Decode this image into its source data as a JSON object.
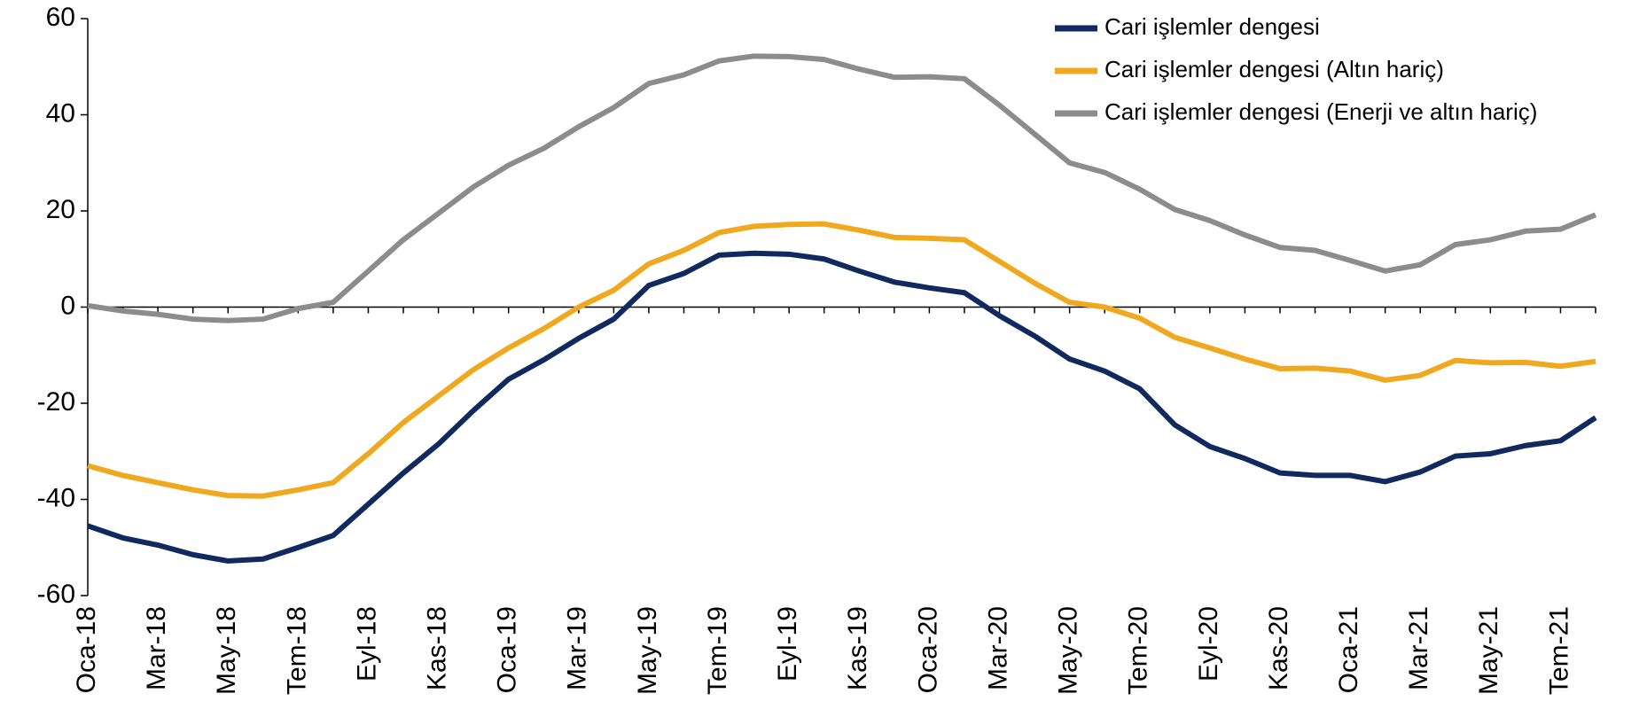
{
  "chart_data": {
    "type": "line",
    "categories": [
      "Oca-18",
      null,
      "Mar-18",
      null,
      "May-18",
      null,
      "Tem-18",
      null,
      "Eyl-18",
      null,
      "Kas-18",
      null,
      "Oca-19",
      null,
      "Mar-19",
      null,
      "May-19",
      null,
      "Tem-19",
      null,
      "Eyl-19",
      null,
      "Kas-19",
      null,
      "Oca-20",
      null,
      "Mar-20",
      null,
      "May-20",
      null,
      "Tem-20",
      null,
      "Eyl-20",
      null,
      "Kas-20",
      null,
      "Oca-21",
      null,
      "Mar-21",
      null,
      "May-21",
      null,
      "Tem-21",
      null
    ],
    "series": [
      {
        "name": "Cari işlemler dengesi",
        "color": "#10295e",
        "values": [
          -45.5,
          -48,
          -49.5,
          -51.5,
          -52.8,
          -52.4,
          -50,
          -47.5,
          -41,
          -34.5,
          -28.5,
          -21.5,
          -15,
          -11,
          -6.5,
          -2.5,
          4.5,
          7,
          10.8,
          11.2,
          11,
          10,
          7.5,
          5.2,
          4,
          3,
          -1.8,
          -6,
          -10.8,
          -13.3,
          -17,
          -24.5,
          -29,
          -31.5,
          -34.5,
          -35,
          -35,
          -36.3,
          -34.3,
          -31,
          -30.5,
          -28.8,
          -27.8,
          -23
        ]
      },
      {
        "name": "Cari işlemler dengesi (Altın hariç)",
        "color": "#f0a81e",
        "values": [
          -33,
          -35,
          -36.5,
          -38,
          -39.2,
          -39.3,
          -38,
          -36.5,
          -30.5,
          -24,
          -18.5,
          -13,
          -8.5,
          -4.5,
          0,
          3.5,
          9,
          11.8,
          15.5,
          16.8,
          17.2,
          17.3,
          16,
          14.5,
          14.3,
          14,
          9.5,
          5,
          1,
          0,
          -2.3,
          -6.3,
          -8.5,
          -10.8,
          -12.8,
          -12.7,
          -13.3,
          -15.2,
          -14.2,
          -11.1,
          -11.6,
          -11.5,
          -12.3,
          -11.3
        ]
      },
      {
        "name": "Cari işlemler dengesi (Enerji ve altın hariç)",
        "color": "#8c8c8c",
        "values": [
          0.3,
          -0.8,
          -1.5,
          -2.5,
          -2.8,
          -2.5,
          -0.3,
          1,
          7.5,
          14,
          19.5,
          25,
          29.5,
          33,
          37.5,
          41.5,
          46.5,
          48.3,
          51.2,
          52.2,
          52.1,
          51.5,
          49.5,
          47.8,
          47.9,
          47.5,
          42,
          36,
          30,
          28,
          24.5,
          20.3,
          18,
          15,
          12.4,
          11.8,
          9.7,
          7.5,
          8.8,
          13,
          14,
          15.8,
          16.2,
          19.2
        ]
      }
    ],
    "ylim": [
      -60,
      60
    ],
    "yticks": [
      -60,
      -40,
      -20,
      0,
      20,
      40,
      60
    ]
  }
}
